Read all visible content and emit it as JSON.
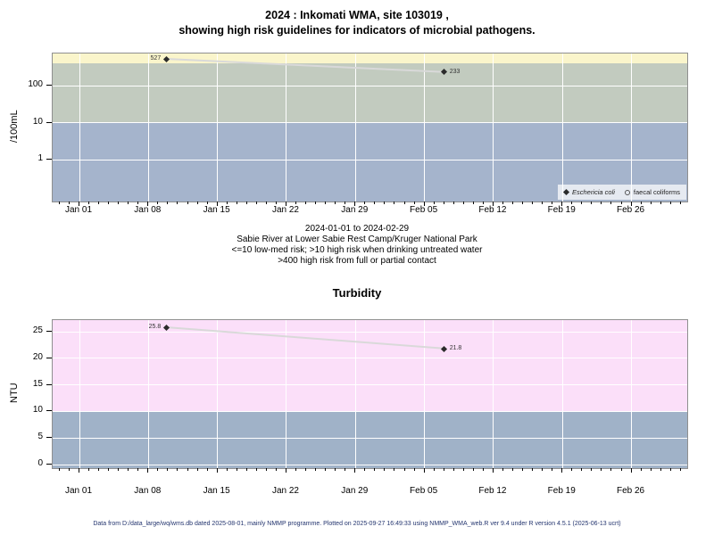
{
  "title": {
    "line1": "2024 : Inkomati WMA, site 103019 ,",
    "line2": "showing high risk guidelines for indicators of microbial pathogens."
  },
  "caption": {
    "line1": "2024-01-01 to 2024-02-29",
    "line2": "Sabie River at Lower Sabie Rest Camp/Kruger National Park",
    "line3": "<=10 low-med risk; >10 high risk when drinking untreated water",
    "line4": ">400 high risk from full or partial contact"
  },
  "footer": {
    "text": "Data from D:/data_large/wq/wms.db dated 2025-08-01, mainly NMMP programme. Plotted on 2025-09-27 16:49:33 using NMMP_WMA_web.R ver 9.4 under R version 4.5.1 (2025-06-13 ucrt)"
  },
  "chart_data": [
    {
      "type": "line",
      "title": "",
      "ylabel": "/100mL",
      "yscale": "log",
      "yticks": [
        100,
        10,
        1
      ],
      "ylim_approx": [
        0.07,
        740
      ],
      "grid": true,
      "x_tick_labels": [
        "Jan 01",
        "Jan 08",
        "Jan 15",
        "Jan 22",
        "Jan 29",
        "Feb 05",
        "Feb 12",
        "Feb 19",
        "Feb 26"
      ],
      "x_range_days_from_jan01": [
        -2.7,
        61.6
      ],
      "series": [
        {
          "name": "Eschericia coli",
          "marker": "filled-diamond",
          "x_days_from_jan01": [
            8.8,
            37.0
          ],
          "values": [
            527,
            233
          ],
          "point_labels": [
            "527",
            "233"
          ]
        }
      ],
      "legend": [
        {
          "symbol": "filled-diamond",
          "label": "Eschericia coli",
          "italic": true
        },
        {
          "symbol": "open-circle",
          "label": "faecal coliforms",
          "italic": false
        }
      ],
      "legend_position": "bottom-right",
      "bands": [
        {
          "color": "#FAF5CB",
          "value_range": "above 400",
          "meaning": "high risk from full or partial contact"
        },
        {
          "color": "#C2CBBF",
          "value_range": "10 to 400",
          "meaning": "high risk when drinking untreated water"
        },
        {
          "color": "#A5B4CC",
          "value_range": "10 and below",
          "meaning": "low-med risk"
        }
      ]
    },
    {
      "type": "line",
      "title": "Turbidity",
      "ylabel": "NTU",
      "yscale": "linear",
      "yticks": [
        25,
        20,
        15,
        10,
        5,
        0
      ],
      "ylim_approx": [
        -0.7,
        27.2
      ],
      "grid": true,
      "x_tick_labels": [
        "Jan 01",
        "Jan 08",
        "Jan 15",
        "Jan 22",
        "Jan 29",
        "Feb 05",
        "Feb 12",
        "Feb 19",
        "Feb 26"
      ],
      "x_range_days_from_jan01": [
        -2.7,
        61.6
      ],
      "series": [
        {
          "name": "Turbidity",
          "marker": "filled-diamond",
          "x_days_from_jan01": [
            8.8,
            37.0
          ],
          "values": [
            25.8,
            21.8
          ],
          "point_labels": [
            "25.8",
            "21.8"
          ]
        }
      ],
      "legend": [],
      "bands": [
        {
          "color": "#FBDFF9",
          "value_range": "above 10"
        },
        {
          "color": "#A0B2C8",
          "value_range": "10 and below"
        }
      ]
    }
  ]
}
